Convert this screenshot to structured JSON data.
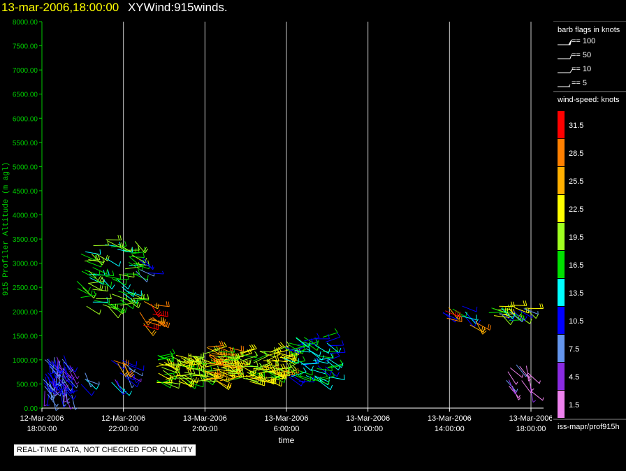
{
  "header": {
    "time_label": "13-mar-2006,18:00:00",
    "title": "XYWind:915winds."
  },
  "footer": {
    "quality_note": "REAL-TIME DATA, NOT CHECKED FOR QUALITY",
    "source_label": "iss-mapr/prof915h"
  },
  "colors": {
    "axis_y": "#00cc00",
    "axis_x": "#ffffff",
    "grid": "#c8c8c8",
    "title_time": "#ffff00"
  },
  "legend": {
    "barb_title": "barb flags in knots",
    "barb_items": [
      "== 100",
      "== 50",
      "== 10",
      "== 5"
    ],
    "speed_title": "wind-speed: knots",
    "bins": [
      {
        "label": "31.5",
        "color": "#ff0000"
      },
      {
        "label": "28.5",
        "color": "#ff8000"
      },
      {
        "label": "25.5",
        "color": "#ffb000"
      },
      {
        "label": "22.5",
        "color": "#ffff00"
      },
      {
        "label": "19.5",
        "color": "#a0ff20"
      },
      {
        "label": "16.5",
        "color": "#00e000"
      },
      {
        "label": "13.5",
        "color": "#00ffff"
      },
      {
        "label": "10.5",
        "color": "#0000ff"
      },
      {
        "label": "7.5",
        "color": "#6495ed"
      },
      {
        "label": "4.5",
        "color": "#8a2be2"
      },
      {
        "label": "1.5",
        "color": "#ee82ee"
      }
    ]
  },
  "chart_data": {
    "type": "scatter",
    "title": "",
    "xlabel": "time",
    "ylabel": "915 Profiler Altitude (m agl)",
    "ylim": [
      0,
      8000
    ],
    "xlim": [
      0,
      24
    ],
    "x_unit": "hours since 12-Mar-2006 18:00:00",
    "grid": "vertical",
    "legend_position": "right",
    "y_ticks": [
      "0.00",
      "500.00",
      "1000.00",
      "1500.00",
      "2000.00",
      "2500.00",
      "3000.00",
      "3500.00",
      "4000.00",
      "4500.00",
      "5000.00",
      "5500.00",
      "6000.00",
      "6500.00",
      "7000.00",
      "7500.00",
      "8000.00"
    ],
    "x_ticks": [
      {
        "x": 0,
        "date": "12-Mar-2006",
        "time": "18:00:00"
      },
      {
        "x": 4,
        "date": "12-Mar-2006",
        "time": "22:00:00"
      },
      {
        "x": 8,
        "date": "13-Mar-2006",
        "time": "2:00:00"
      },
      {
        "x": 12,
        "date": "13-Mar-2006",
        "time": "6:00:00"
      },
      {
        "x": 16,
        "date": "13-Mar-2006",
        "time": "10:00:00"
      },
      {
        "x": 20,
        "date": "13-Mar-2006",
        "time": "14:00:00"
      },
      {
        "x": 24,
        "date": "13-Mar-2006",
        "time": "18:00:00"
      }
    ],
    "clusters": [
      {
        "t0": 0.0,
        "t1": 1.5,
        "a0": 250,
        "a1": 1100,
        "speed": 8,
        "dir": 200,
        "n": 70
      },
      {
        "t0": 1.8,
        "t1": 2.2,
        "a0": 450,
        "a1": 800,
        "speed": 11,
        "dir": 220,
        "n": 4
      },
      {
        "t0": 3.3,
        "t1": 4.3,
        "a0": 450,
        "a1": 1000,
        "speed": 9,
        "dir": 230,
        "n": 14
      },
      {
        "t0": 3.5,
        "t1": 4.3,
        "a0": 900,
        "a1": 1000,
        "speed": 28,
        "dir": 230,
        "n": 4
      },
      {
        "t0": 1.7,
        "t1": 4.6,
        "a0": 2100,
        "a1": 3500,
        "speed": 17,
        "dir": 250,
        "n": 75
      },
      {
        "t0": 4.8,
        "t1": 5.6,
        "a0": 1700,
        "a1": 2300,
        "speed": 28,
        "dir": 240,
        "n": 12
      },
      {
        "t0": 4.6,
        "t1": 5.3,
        "a0": 2700,
        "a1": 3300,
        "speed": 9,
        "dir": 240,
        "n": 5
      },
      {
        "t0": 5.6,
        "t1": 8.0,
        "a0": 500,
        "a1": 1150,
        "speed": 20,
        "dir": 260,
        "n": 65
      },
      {
        "t0": 7.8,
        "t1": 9.2,
        "a0": 500,
        "a1": 1300,
        "speed": 26,
        "dir": 260,
        "n": 40
      },
      {
        "t0": 8.5,
        "t1": 12.0,
        "a0": 550,
        "a1": 1200,
        "speed": 21,
        "dir": 270,
        "n": 90
      },
      {
        "t0": 11.8,
        "t1": 14.2,
        "a0": 550,
        "a1": 1500,
        "speed": 14,
        "dir": 260,
        "n": 60
      },
      {
        "t0": 19.5,
        "t1": 21.8,
        "a0": 1800,
        "a1": 2150,
        "speed": 14,
        "dir": 240,
        "n": 8
      },
      {
        "t0": 19.5,
        "t1": 20.0,
        "a0": 1800,
        "a1": 2100,
        "speed": 29,
        "dir": 230,
        "n": 3
      },
      {
        "t0": 21.0,
        "t1": 21.5,
        "a0": 1700,
        "a1": 1950,
        "speed": 25,
        "dir": 220,
        "n": 3
      },
      {
        "t0": 21.9,
        "t1": 23.9,
        "a0": 1800,
        "a1": 2150,
        "speed": 19,
        "dir": 250,
        "n": 18
      },
      {
        "t0": 22.3,
        "t1": 23.9,
        "a0": 1950,
        "a1": 2100,
        "speed": 10,
        "dir": 240,
        "n": 6
      },
      {
        "t0": 22.7,
        "t1": 24.0,
        "a0": 300,
        "a1": 900,
        "speed": 4,
        "dir": 210,
        "n": 14
      }
    ]
  }
}
